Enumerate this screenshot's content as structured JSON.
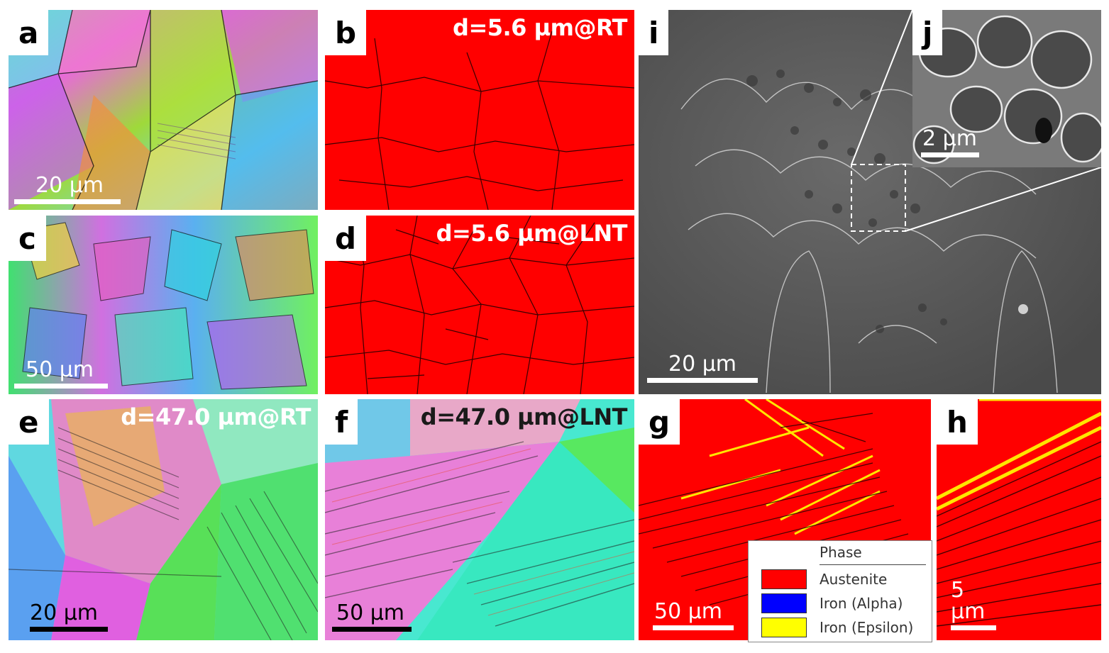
{
  "panels": {
    "a": {
      "letter": "a",
      "scale": "20 µm"
    },
    "b": {
      "letter": "b",
      "label": "d=5.6 µm@RT"
    },
    "c": {
      "letter": "c",
      "scale": "50 µm"
    },
    "d": {
      "letter": "d",
      "label": "d=5.6 µm@LNT"
    },
    "e": {
      "letter": "e",
      "label": "d=47.0 µm@RT",
      "scale": "20 µm"
    },
    "f": {
      "letter": "f",
      "label": "d=47.0 µm@LNT",
      "scale": "50 µm"
    },
    "g": {
      "letter": "g",
      "scale": "50 µm"
    },
    "h": {
      "letter": "h",
      "scale": "5 µm"
    },
    "i": {
      "letter": "i",
      "scale": "20 µm"
    },
    "j": {
      "letter": "j",
      "scale": "2 µm"
    }
  },
  "legend": {
    "title": "Phase",
    "items": [
      {
        "name": "Austenite",
        "color": "#ff0000"
      },
      {
        "name": "Iron (Alpha)",
        "color": "#0000ff"
      },
      {
        "name": "Iron (Epsilon)",
        "color": "#ffff00"
      }
    ]
  },
  "colors": {
    "austenite": "#ff0000",
    "epsilon": "#ffff00",
    "sem": "#5a5a5a"
  }
}
